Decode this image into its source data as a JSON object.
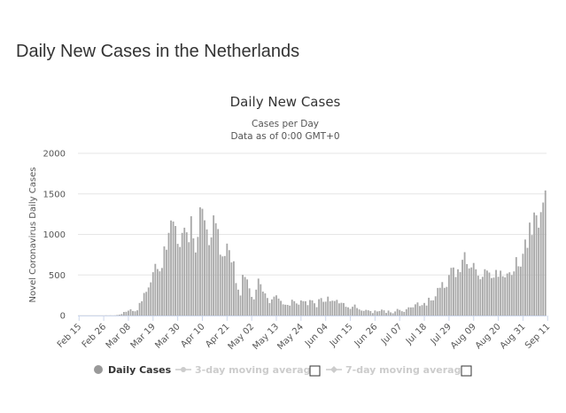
{
  "page": {
    "title": "Daily New Cases in the Netherlands"
  },
  "colors": {
    "bar": "#a8a8a8",
    "grid": "#e6e6e6",
    "axis": "#ccd6eb",
    "legend_inactive": "#cccccc",
    "legend_marker": "#999999"
  },
  "legend": {
    "items": [
      {
        "label": "Daily Cases",
        "active": true
      },
      {
        "label": "3-day moving average",
        "active": false
      },
      {
        "label": "7-day moving average",
        "active": false
      }
    ]
  },
  "chart_data": {
    "type": "bar",
    "title": "Daily New Cases",
    "subtitle_line1": "Cases per Day",
    "subtitle_line2": "Data as of 0:00 GMT+0",
    "ylabel": "Novel Coronavirus Daily Cases",
    "xlabel": "",
    "ylim": [
      0,
      2000
    ],
    "yticks": [
      0,
      500,
      1000,
      1500,
      2000
    ],
    "start_date": "Feb 15",
    "xtick_labels": [
      "Feb 15",
      "Feb 26",
      "Mar 08",
      "Mar 19",
      "Mar 30",
      "Apr 10",
      "Apr 21",
      "May 02",
      "May 13",
      "May 24",
      "Jun 04",
      "Jun 15",
      "Jun 26",
      "Jul 07",
      "Jul 18",
      "Jul 29",
      "Aug 09",
      "Aug 20",
      "Aug 31",
      "Sep 11"
    ],
    "xtick_interval_days": 11,
    "series": [
      {
        "name": "Daily Cases",
        "values": [
          0,
          0,
          0,
          0,
          0,
          0,
          0,
          0,
          0,
          0,
          0,
          0,
          1,
          0,
          1,
          0,
          1,
          6,
          10,
          18,
          44,
          46,
          60,
          77,
          56,
          52,
          64,
          155,
          176,
          278,
          292,
          346,
          409,
          534,
          637,
          573,
          545,
          586,
          852,
          811,
          1019,
          1172,
          1159,
          1104,
          884,
          845,
          1019,
          1083,
          1026,
          904,
          1224,
          952,
          777,
          969,
          1335,
          1316,
          1174,
          1062,
          868,
          964,
          1235,
          1138,
          1066,
          750,
          729,
          734,
          887,
          806,
          655,
          669,
          400,
          319,
          247,
          502,
          475,
          445,
          335,
          230,
          199,
          319,
          455,
          386,
          295,
          273,
          216,
          154,
          199,
          233,
          249,
          209,
          181,
          138,
          133,
          131,
          122,
          195,
          177,
          149,
          134,
          186,
          177,
          176,
          128,
          191,
          187,
          151,
          103,
          201,
          215,
          169,
          171,
          233,
          176,
          183,
          179,
          193,
          150,
          157,
          154,
          108,
          101,
          82,
          108,
          135,
          92,
          75,
          61,
          57,
          70,
          64,
          55,
          30,
          62,
          50,
          55,
          73,
          64,
          32,
          61,
          39,
          28,
          50,
          81,
          69,
          53,
          45,
          77,
          101,
          100,
          101,
          138,
          161,
          117,
          128,
          155,
          123,
          219,
          186,
          187,
          237,
          340,
          342,
          412,
          341,
          353,
          499,
          588,
          592,
          475,
          570,
          535,
          687,
          781,
          634,
          581,
          593,
          648,
          570,
          491,
          447,
          477,
          571,
          554,
          530,
          462,
          468,
          562,
          478,
          553,
          484,
          470,
          518,
          533,
          499,
          544,
          720,
          607,
          603,
          762,
          937,
          835,
          1146,
          993,
          1270,
          1236,
          1083,
          1275,
          1393,
          1542
        ]
      }
    ]
  }
}
